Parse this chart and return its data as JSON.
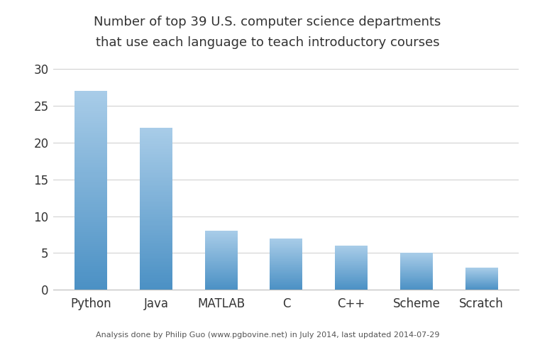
{
  "title_line1": "Number of top 39 U.S. computer science departments",
  "title_line2": "that use each language to teach introductory courses",
  "categories": [
    "Python",
    "Java",
    "MATLAB",
    "C",
    "C++",
    "Scheme",
    "Scratch"
  ],
  "values": [
    27,
    22,
    8,
    7,
    6,
    5,
    3
  ],
  "bar_color_top": "#a8cce8",
  "bar_color_bottom": "#4a90c4",
  "background_color": "#ffffff",
  "ylim": [
    0,
    30
  ],
  "yticks": [
    0,
    5,
    10,
    15,
    20,
    25,
    30
  ],
  "footnote": "Analysis done by Philip Guo (www.pgbovine.net) in July 2014, last updated 2014-07-29",
  "title_fontsize": 13,
  "axis_label_fontsize": 12,
  "footnote_fontsize": 8,
  "title_color": "#333333",
  "tick_color": "#333333",
  "grid_color": "#cccccc"
}
